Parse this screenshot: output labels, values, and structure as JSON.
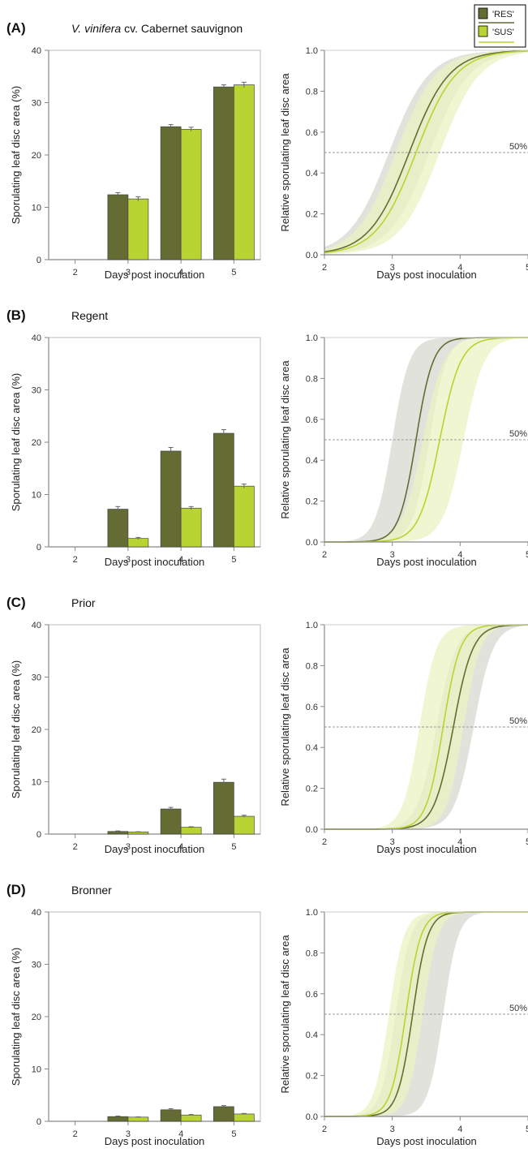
{
  "legend": {
    "entries": [
      {
        "label": "'RES'",
        "color": "#646b33"
      },
      {
        "label": "'SUS'",
        "color": "#b8d432"
      }
    ]
  },
  "colors": {
    "res_bar": "#646b33",
    "sus_bar": "#b8d432",
    "res_band": "#d8d8d0",
    "sus_band": "#eaf3c2",
    "overlap_band": "#c5cca7",
    "axis": "#9a9a9a",
    "ref_line": "#9a9a9a"
  },
  "chart_data": [
    {
      "panel": "(A)",
      "panel_title": "V. vinifera cv. Cabernet sauvignon",
      "bar": {
        "type": "bar",
        "categories": [
          "2",
          "3",
          "4",
          "5"
        ],
        "series": [
          {
            "name": "'RES'",
            "values": [
              0,
              12.4,
              25.4,
              33.0
            ],
            "errors": [
              0,
              0.4,
              0.4,
              0.4
            ]
          },
          {
            "name": "'SUS'",
            "values": [
              0,
              11.6,
              24.9,
              33.4
            ],
            "errors": [
              0,
              0.4,
              0.4,
              0.5
            ]
          }
        ],
        "xlabel": "Days post inoculation",
        "ylabel": "Sporulating leaf disc area (%)",
        "ylim": [
          0,
          40
        ],
        "yticks": [
          0,
          10,
          20,
          30,
          40
        ]
      },
      "curve": {
        "type": "line",
        "series": [
          {
            "name": "'RES'",
            "midpoint": 3.25,
            "slope": 3.4,
            "band_lo_mid": 2.95,
            "band_hi_mid": 3.55
          },
          {
            "name": "'SUS'",
            "midpoint": 3.35,
            "slope": 3.4,
            "band_lo_mid": 3.05,
            "band_hi_mid": 3.7
          }
        ],
        "xlabel": "Days post inoculation",
        "ylabel": "Relative sporulating leaf disc area",
        "xlim": [
          2,
          5
        ],
        "ylim": [
          0,
          1
        ],
        "xticks": [
          "2",
          "3",
          "4",
          "5"
        ],
        "yticks": [
          "0.0",
          "0.2",
          "0.4",
          "0.6",
          "0.8",
          "1.0"
        ],
        "reference_line": {
          "y": 0.5,
          "label": "50%"
        }
      }
    },
    {
      "panel": "(B)",
      "panel_title": "Regent",
      "bar": {
        "type": "bar",
        "categories": [
          "2",
          "3",
          "4",
          "5"
        ],
        "series": [
          {
            "name": "'RES'",
            "values": [
              0,
              7.2,
              18.3,
              21.7
            ],
            "errors": [
              0,
              0.5,
              0.7,
              0.7
            ]
          },
          {
            "name": "'SUS'",
            "values": [
              0,
              1.6,
              7.4,
              11.6
            ],
            "errors": [
              0,
              0.2,
              0.3,
              0.4
            ]
          }
        ],
        "xlabel": "Days post inoculation",
        "ylabel": "Sporulating leaf disc area (%)",
        "ylim": [
          0,
          40
        ],
        "yticks": [
          0,
          10,
          20,
          30,
          40
        ]
      },
      "curve": {
        "type": "line",
        "series": [
          {
            "name": "'RES'",
            "midpoint": 3.35,
            "slope": 8,
            "band_lo_mid": 3.0,
            "band_hi_mid": 3.55
          },
          {
            "name": "'SUS'",
            "midpoint": 3.7,
            "slope": 6.5,
            "band_lo_mid": 3.45,
            "band_hi_mid": 4.05
          }
        ],
        "xlabel": "Days post inoculation",
        "ylabel": "Relative sporulating leaf disc area",
        "xlim": [
          2,
          5
        ],
        "ylim": [
          0,
          1
        ],
        "xticks": [
          "2",
          "3",
          "4",
          "5"
        ],
        "yticks": [
          "0.0",
          "0.2",
          "0.4",
          "0.6",
          "0.8",
          "1.0"
        ],
        "reference_line": {
          "y": 0.5,
          "label": "50%"
        }
      }
    },
    {
      "panel": "(C)",
      "panel_title": "Prior",
      "bar": {
        "type": "bar",
        "categories": [
          "2",
          "3",
          "4",
          "5"
        ],
        "series": [
          {
            "name": "'RES'",
            "values": [
              0,
              0.5,
              4.8,
              9.9
            ],
            "errors": [
              0,
              0.1,
              0.3,
              0.6
            ]
          },
          {
            "name": "'SUS'",
            "values": [
              0,
              0.4,
              1.3,
              3.4
            ],
            "errors": [
              0,
              0.05,
              0.1,
              0.2
            ]
          }
        ],
        "xlabel": "Days post inoculation",
        "ylabel": "Sporulating leaf disc area (%)",
        "ylim": [
          0,
          40
        ],
        "yticks": [
          0,
          10,
          20,
          30,
          40
        ]
      },
      "curve": {
        "type": "line",
        "series": [
          {
            "name": "'RES'",
            "midpoint": 3.9,
            "slope": 7,
            "band_lo_mid": 3.65,
            "band_hi_mid": 4.2
          },
          {
            "name": "'SUS'",
            "midpoint": 3.75,
            "slope": 8,
            "band_lo_mid": 3.4,
            "band_hi_mid": 4.05
          }
        ],
        "xlabel": "Days post inoculation",
        "ylabel": "Relative sporulating leaf disc area",
        "xlim": [
          2,
          5
        ],
        "ylim": [
          0,
          1
        ],
        "xticks": [
          "2",
          "3",
          "4",
          "5"
        ],
        "yticks": [
          "0.0",
          "0.2",
          "0.4",
          "0.6",
          "0.8",
          "1.0"
        ],
        "reference_line": {
          "y": 0.5,
          "label": "50%"
        }
      }
    },
    {
      "panel": "(D)",
      "panel_title": "Bronner",
      "bar": {
        "type": "bar",
        "categories": [
          "2",
          "3",
          "4",
          "5"
        ],
        "series": [
          {
            "name": "'RES'",
            "values": [
              0,
              0.9,
              2.2,
              2.8
            ],
            "errors": [
              0,
              0.1,
              0.2,
              0.2
            ]
          },
          {
            "name": "'SUS'",
            "values": [
              0,
              0.8,
              1.2,
              1.4
            ],
            "errors": [
              0,
              0.05,
              0.1,
              0.1
            ]
          }
        ],
        "xlabel": "Days post inoculation",
        "ylabel": "Sporulating leaf disc area (%)",
        "ylim": [
          0,
          40
        ],
        "yticks": [
          0,
          10,
          20,
          30,
          40
        ]
      },
      "curve": {
        "type": "line",
        "series": [
          {
            "name": "'RES'",
            "midpoint": 3.3,
            "slope": 9,
            "band_lo_mid": 3.05,
            "band_hi_mid": 3.75
          },
          {
            "name": "'SUS'",
            "midpoint": 3.2,
            "slope": 9,
            "band_lo_mid": 2.95,
            "band_hi_mid": 3.45
          }
        ],
        "xlabel": "Days post inoculation",
        "ylabel": "Relative sporulating leaf disc area",
        "xlim": [
          2,
          5
        ],
        "ylim": [
          0,
          1
        ],
        "xticks": [
          "2",
          "3",
          "4",
          "5"
        ],
        "yticks": [
          "0.0",
          "0.2",
          "0.4",
          "0.6",
          "0.8",
          "1.0"
        ],
        "reference_line": {
          "y": 0.5,
          "label": "50%"
        }
      }
    }
  ]
}
